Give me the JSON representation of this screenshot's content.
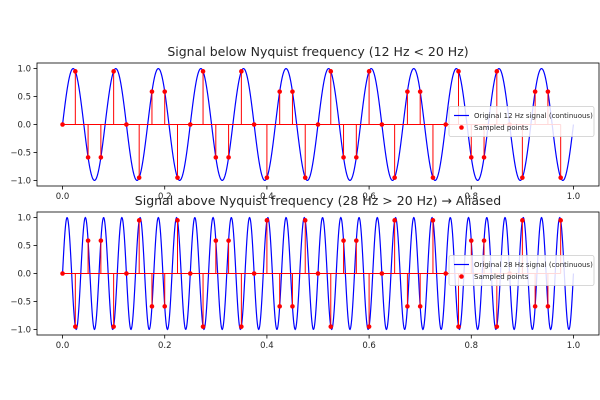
{
  "chart_data": [
    {
      "type": "line",
      "title": "Signal below Nyquist frequency (12 Hz < 20 Hz)",
      "xlabel": "",
      "ylabel": "",
      "xlim": [
        -0.05,
        1.05
      ],
      "ylim": [
        -1.1,
        1.1
      ],
      "xticks": [
        0.0,
        0.2,
        0.4,
        0.6,
        0.8,
        1.0
      ],
      "xtick_labels": [
        "0.0",
        "0.2",
        "0.4",
        "0.6",
        "0.8",
        "1.0"
      ],
      "yticks": [
        1.0,
        0.5,
        0.0,
        -0.5,
        -1.0
      ],
      "ytick_labels": [
        "1.0",
        "0.5",
        "0.0",
        "−0.5",
        "−1.0"
      ],
      "grid": false,
      "legend_position": "center-right",
      "series": [
        {
          "name": "Original 12 Hz signal (continuous)",
          "kind": "continuous",
          "function": "sin",
          "frequency_hz": 12,
          "amplitude": 1.0,
          "x_range": [
            0,
            1
          ],
          "color": "#0000ff"
        },
        {
          "name": "Sampled points",
          "kind": "stem",
          "sample_rate_hz": 40,
          "frequency_hz": 12,
          "n_samples": 40,
          "color": "#ff0000"
        }
      ],
      "zero_line": true
    },
    {
      "type": "line",
      "title": "Signal above Nyquist frequency (28 Hz > 20 Hz) → Aliased",
      "xlabel": "",
      "ylabel": "",
      "xlim": [
        -0.05,
        1.05
      ],
      "ylim": [
        -1.1,
        1.1
      ],
      "xticks": [
        0.0,
        0.2,
        0.4,
        0.6,
        0.8,
        1.0
      ],
      "xtick_labels": [
        "0.0",
        "0.2",
        "0.4",
        "0.6",
        "0.8",
        "1.0"
      ],
      "yticks": [
        1.0,
        0.5,
        0.0,
        -0.5,
        -1.0
      ],
      "ytick_labels": [
        "1.0",
        "0.5",
        "0.0",
        "−0.5",
        "−1.0"
      ],
      "grid": false,
      "legend_position": "center-right",
      "series": [
        {
          "name": "Original 28 Hz signal (continuous)",
          "kind": "continuous",
          "function": "sin",
          "frequency_hz": 28,
          "amplitude": 1.0,
          "x_range": [
            0,
            1
          ],
          "color": "#0000ff"
        },
        {
          "name": "Sampled points",
          "kind": "stem",
          "sample_rate_hz": 40,
          "frequency_hz": 28,
          "n_samples": 40,
          "color": "#ff0000"
        }
      ],
      "zero_line": true
    }
  ]
}
